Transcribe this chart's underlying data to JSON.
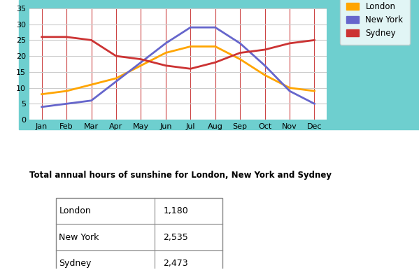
{
  "months": [
    "Jan",
    "Feb",
    "Mar",
    "Apr",
    "May",
    "Jun",
    "Jul",
    "Aug",
    "Sep",
    "Oct",
    "Nov",
    "Dec"
  ],
  "london": [
    8,
    9,
    11,
    13,
    17,
    21,
    23,
    23,
    19,
    14,
    10,
    9
  ],
  "new_york": [
    4,
    5,
    6,
    12,
    18,
    24,
    29,
    29,
    24,
    17,
    9,
    5
  ],
  "sydney": [
    26,
    26,
    25,
    20,
    19,
    17,
    16,
    18,
    21,
    22,
    24,
    25
  ],
  "london_color": "#FFA500",
  "new_york_color": "#6666CC",
  "sydney_color": "#CC3333",
  "bg_color": "#6ECFCF",
  "plot_bg_color": "#FFFFFF",
  "grid_color_h": "#CCCCCC",
  "grid_color_v": "#CC4444",
  "ylim": [
    0,
    35
  ],
  "yticks": [
    0,
    5,
    10,
    15,
    20,
    25,
    30,
    35
  ],
  "legend_labels": [
    "London",
    "New York",
    "Sydney"
  ],
  "table_title": "Total annual hours of sunshine for London, New York and Sydney",
  "table_data": [
    [
      "London",
      "1,180"
    ],
    [
      "New York",
      "2,535"
    ],
    [
      "Sydney",
      "2,473"
    ]
  ],
  "line_width": 2.0
}
